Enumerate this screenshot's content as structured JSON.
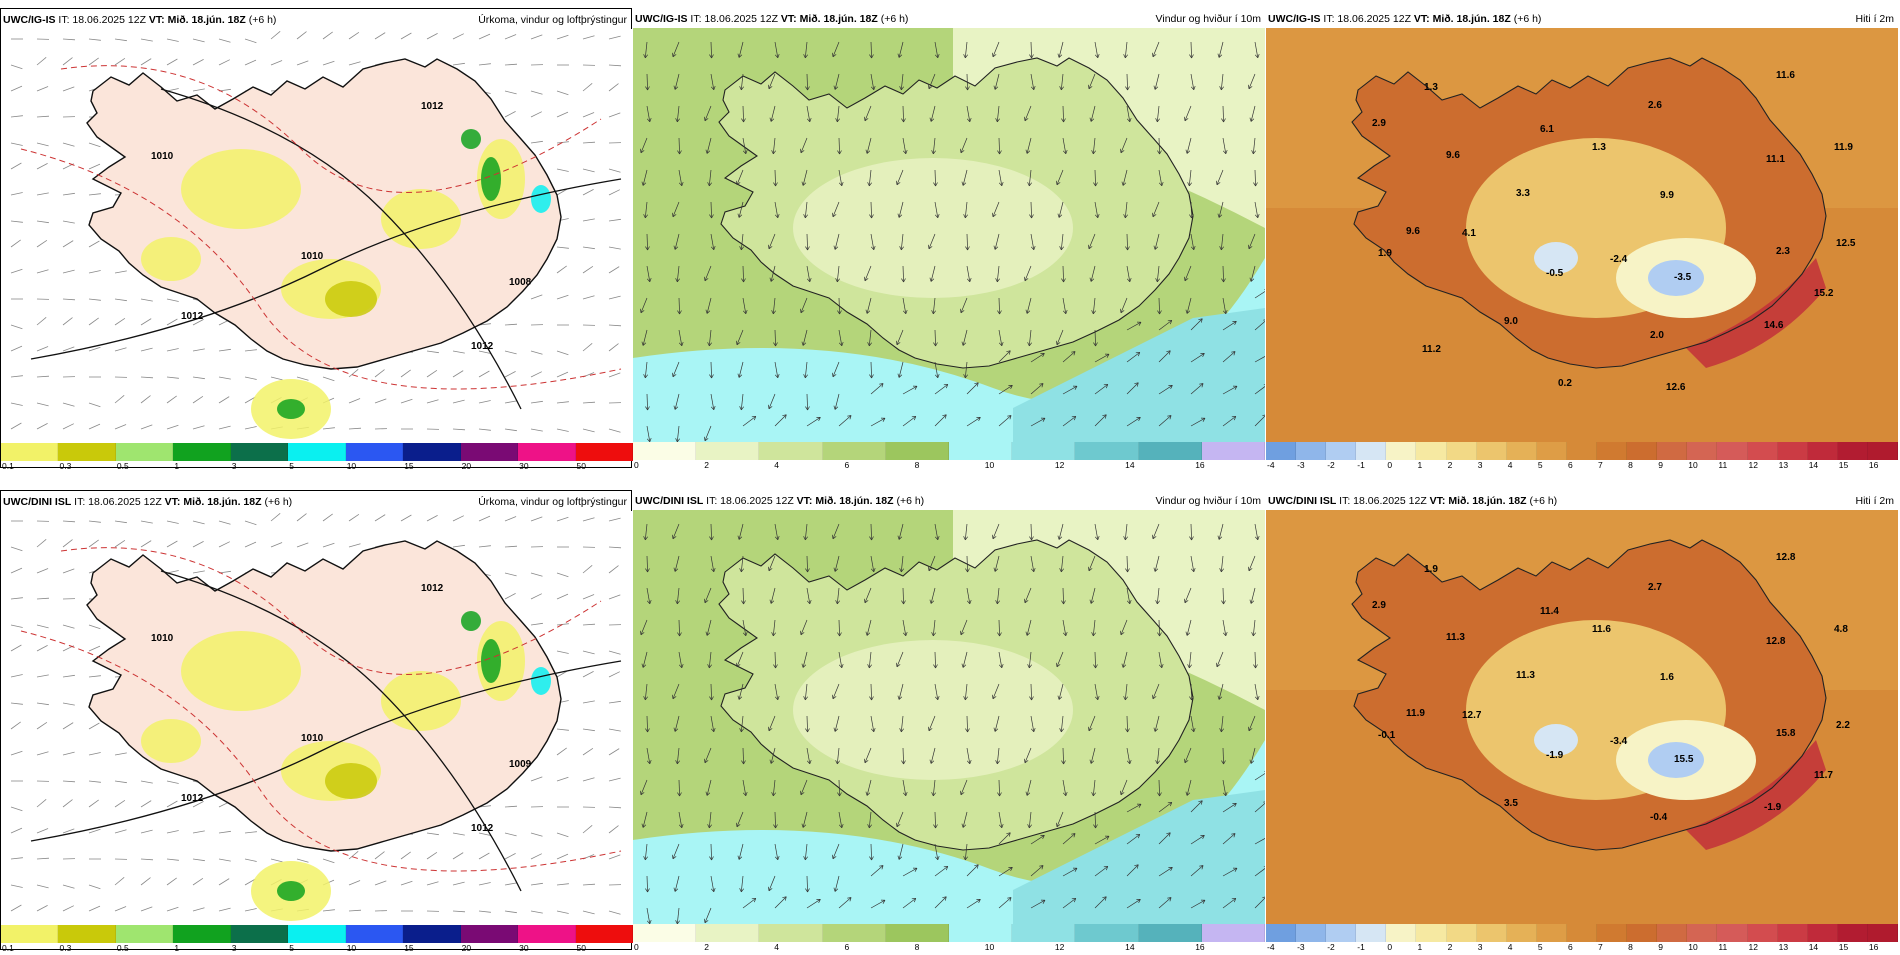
{
  "panels": [
    {
      "model": "UWC/IG-IS",
      "init": "IT: 18.06.2025 12Z",
      "valid": "VT: Mið. 18.jún. 18Z",
      "lead": "(+6 h)",
      "variable": "Úrkoma, vindur og loftþrýstingur",
      "kind": "precip",
      "ticks": [
        "0.1",
        "0.3",
        "0.5",
        "1",
        "3",
        "5",
        "10",
        "15",
        "20",
        "30",
        "50"
      ],
      "colors": [
        "#f2f268",
        "#c9c90a",
        "#9fe56f",
        "#11a21f",
        "#0c6f4a",
        "#0af0f0",
        "#2b57f2",
        "#0a1e8c",
        "#7a0a74",
        "#ee1287",
        "#ee0d0d"
      ],
      "isobars": [
        "1010",
        "1010",
        "1012",
        "1012",
        "1012",
        "1008"
      ]
    },
    {
      "model": "UWC/IG-IS",
      "init": "IT: 18.06.2025 12Z",
      "valid": "VT: Mið. 18.jún. 18Z",
      "lead": "(+6 h)",
      "variable": "Vindur og hviður í 10m",
      "kind": "wind",
      "ticks": [
        "0",
        "2",
        "4",
        "6",
        "8",
        "10",
        "12",
        "14",
        "16"
      ],
      "colors": [
        "#fbfde6",
        "#e8f3c4",
        "#cfe59c",
        "#b4d57a",
        "#9cc65e",
        "#a9f5f5",
        "#8fe1e4",
        "#6ec9cf",
        "#55b2bb",
        "#c5b6f2"
      ]
    },
    {
      "model": "UWC/IG-IS",
      "init": "IT: 18.06.2025 12Z",
      "valid": "VT: Mið. 18.jún. 18Z",
      "lead": "(+6 h)",
      "variable": "Hiti í 2m",
      "kind": "temp",
      "ticks": [
        "-4",
        "-3",
        "-2",
        "-1",
        "0",
        "1",
        "2",
        "3",
        "4",
        "5",
        "6",
        "7",
        "8",
        "9",
        "10",
        "11",
        "12",
        "13",
        "14",
        "15",
        "16"
      ],
      "colors": [
        "#6f9fe0",
        "#8fb6ea",
        "#b0cdf2",
        "#d6e6f4",
        "#f7f3c6",
        "#f6e9a2",
        "#f2d986",
        "#ecc56d",
        "#e5b157",
        "#de9d46",
        "#d68a38",
        "#d07a30",
        "#cc6d2f",
        "#d06a42",
        "#d46553",
        "#d55b59",
        "#d34c4f",
        "#cb3b44",
        "#c02a3a",
        "#b21c31",
        "#b01b2e"
      ],
      "labels": [
        "1.3",
        "11.6",
        "2.9",
        "2.6",
        "6.1",
        "9.6",
        "1.3",
        "11.1",
        "11.9",
        "3.3",
        "9.9",
        "9.6",
        "4.1",
        "12.5",
        "1.9",
        "-0.5",
        "-2.4",
        "2.3",
        "-3.5",
        "15.2",
        "9.0",
        "14.6",
        "2.0",
        "11.2",
        "0.2",
        "12.6"
      ]
    },
    {
      "model": "UWC/DINI ISL",
      "init": "IT: 18.06.2025 12Z",
      "valid": "VT: Mið. 18.jún. 18Z",
      "lead": "(+6 h)",
      "variable": "Úrkoma, vindur og loftþrýstingur",
      "kind": "precip",
      "ticks": [
        "0.1",
        "0.3",
        "0.5",
        "1",
        "3",
        "5",
        "10",
        "15",
        "20",
        "30",
        "50"
      ],
      "colors": [
        "#f2f268",
        "#c9c90a",
        "#9fe56f",
        "#11a21f",
        "#0c6f4a",
        "#0af0f0",
        "#2b57f2",
        "#0a1e8c",
        "#7a0a74",
        "#ee1287",
        "#ee0d0d"
      ],
      "isobars": [
        "1010",
        "1010",
        "1012",
        "1012",
        "1012",
        "1009"
      ]
    },
    {
      "model": "UWC/DINI ISL",
      "init": "IT: 18.06.2025 12Z",
      "valid": "VT: Mið. 18.jún. 18Z",
      "lead": "(+6 h)",
      "variable": "Vindur og hviður í 10m",
      "kind": "wind",
      "ticks": [
        "0",
        "2",
        "4",
        "6",
        "8",
        "10",
        "12",
        "14",
        "16"
      ],
      "colors": [
        "#fbfde6",
        "#e8f3c4",
        "#cfe59c",
        "#b4d57a",
        "#9cc65e",
        "#a9f5f5",
        "#8fe1e4",
        "#6ec9cf",
        "#55b2bb",
        "#c5b6f2"
      ]
    },
    {
      "model": "UWC/DINI ISL",
      "init": "IT: 18.06.2025 12Z",
      "valid": "VT: Mið. 18.jún. 18Z",
      "lead": "(+6 h)",
      "variable": "Hiti í 2m",
      "kind": "temp",
      "ticks": [
        "-4",
        "-3",
        "-2",
        "-1",
        "0",
        "1",
        "2",
        "3",
        "4",
        "5",
        "6",
        "7",
        "8",
        "9",
        "10",
        "11",
        "12",
        "13",
        "14",
        "15",
        "16"
      ],
      "colors": [
        "#6f9fe0",
        "#8fb6ea",
        "#b0cdf2",
        "#d6e6f4",
        "#f7f3c6",
        "#f6e9a2",
        "#f2d986",
        "#ecc56d",
        "#e5b157",
        "#de9d46",
        "#d68a38",
        "#d07a30",
        "#cc6d2f",
        "#d06a42",
        "#d46553",
        "#d55b59",
        "#d34c4f",
        "#cb3b44",
        "#c02a3a",
        "#b21c31",
        "#b01b2e"
      ],
      "labels": [
        "1.9",
        "12.8",
        "2.9",
        "2.7",
        "11.4",
        "11.3",
        "11.6",
        "12.8",
        "4.8",
        "11.3",
        "1.6",
        "11.9",
        "12.7",
        "2.2",
        "-0.1",
        "-1.9",
        "-3.4",
        "15.8",
        "15.5",
        "11.7",
        "3.5",
        "-1.9",
        "-0.4"
      ]
    }
  ]
}
